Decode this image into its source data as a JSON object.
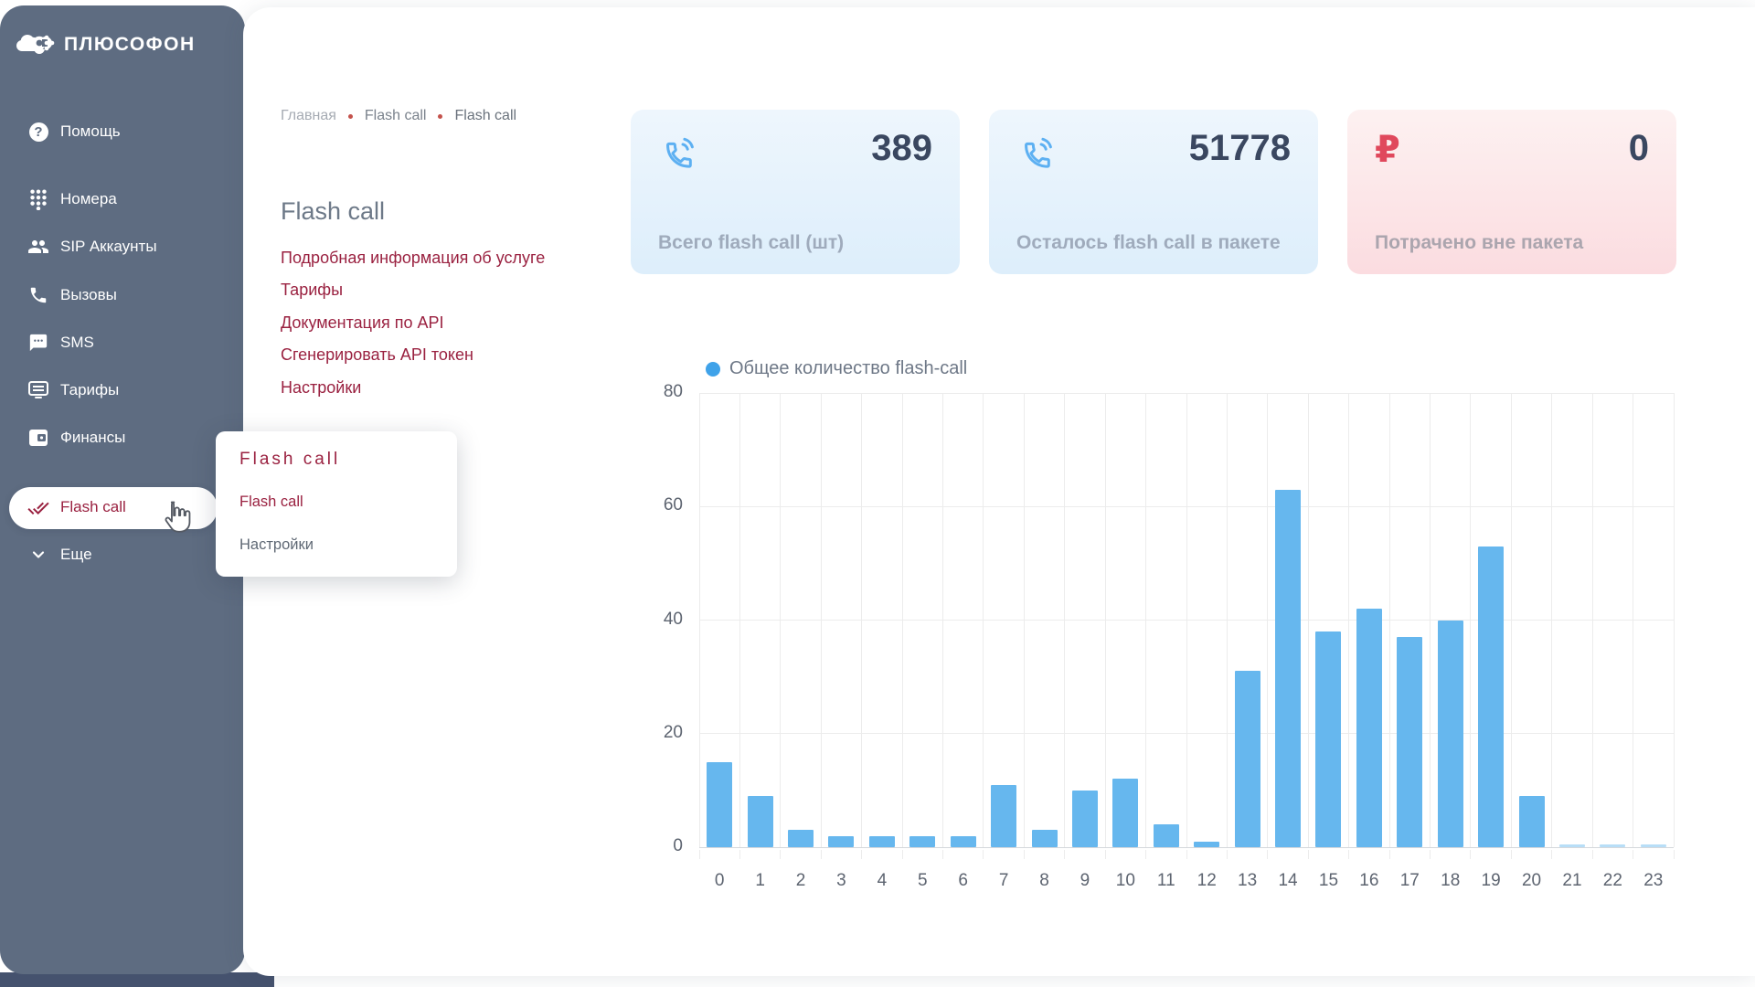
{
  "app": {
    "brand": "ПЛЮСОФОН"
  },
  "colors": {
    "sidebar_bg": "#5e6c81",
    "accent_maroon": "#9a2140",
    "bar_blue": "#66b7ee",
    "page_bottom": "#45526e"
  },
  "sidebar": {
    "items": [
      {
        "label": "Помощь",
        "icon": "help-icon"
      },
      {
        "label": "Номера",
        "icon": "dialpad-icon"
      },
      {
        "label": "SIP Аккаунты",
        "icon": "people-icon"
      },
      {
        "label": "Вызовы",
        "icon": "phone-icon"
      },
      {
        "label": "SMS",
        "icon": "sms-icon"
      },
      {
        "label": "Тарифы",
        "icon": "tariff-icon"
      },
      {
        "label": "Финансы",
        "icon": "wallet-icon"
      },
      {
        "label": "Flash call",
        "icon": "double-check-icon",
        "active": true
      },
      {
        "label": "Еще",
        "icon": "chevron-down-icon"
      }
    ]
  },
  "breadcrumb": {
    "items": [
      "Главная",
      "Flash call",
      "Flash call"
    ]
  },
  "page": {
    "title": "Flash call",
    "links": [
      "Подробная информация об услуге",
      "Тарифы",
      "Документация по API",
      "Сгенерировать API токен",
      "Настройки"
    ]
  },
  "popup": {
    "title": "Flash call",
    "items": [
      {
        "label": "Flash call"
      },
      {
        "label": "Настройки"
      }
    ]
  },
  "cards": [
    {
      "icon": "phone-call-icon",
      "value": "389",
      "label": "Всего flash call (шт)"
    },
    {
      "icon": "phone-call-icon",
      "value": "51778",
      "label": "Осталось flash call в пакете"
    },
    {
      "icon": "ruble-icon",
      "value": "0",
      "label": "Потрачено вне пакета"
    }
  ],
  "chart_data": {
    "type": "bar",
    "legend": "Общее количество flash-call",
    "legend_position": "top-left",
    "categories": [
      "0",
      "1",
      "2",
      "3",
      "4",
      "5",
      "6",
      "7",
      "8",
      "9",
      "10",
      "11",
      "12",
      "13",
      "14",
      "15",
      "16",
      "17",
      "18",
      "19",
      "20",
      "21",
      "22",
      "23"
    ],
    "values": [
      15,
      9,
      3,
      2,
      2,
      2,
      2,
      11,
      3,
      10,
      12,
      4,
      1,
      31,
      63,
      38,
      42,
      37,
      40,
      53,
      9,
      0.5,
      0.5,
      0.5
    ],
    "title": "",
    "xlabel": "",
    "ylabel": "",
    "ylim": [
      0,
      80
    ],
    "yticks": [
      0,
      20,
      40,
      60,
      80
    ],
    "grid": true,
    "bar_color": "#66b7ee",
    "bar_color_tiny": "#b8def7"
  }
}
